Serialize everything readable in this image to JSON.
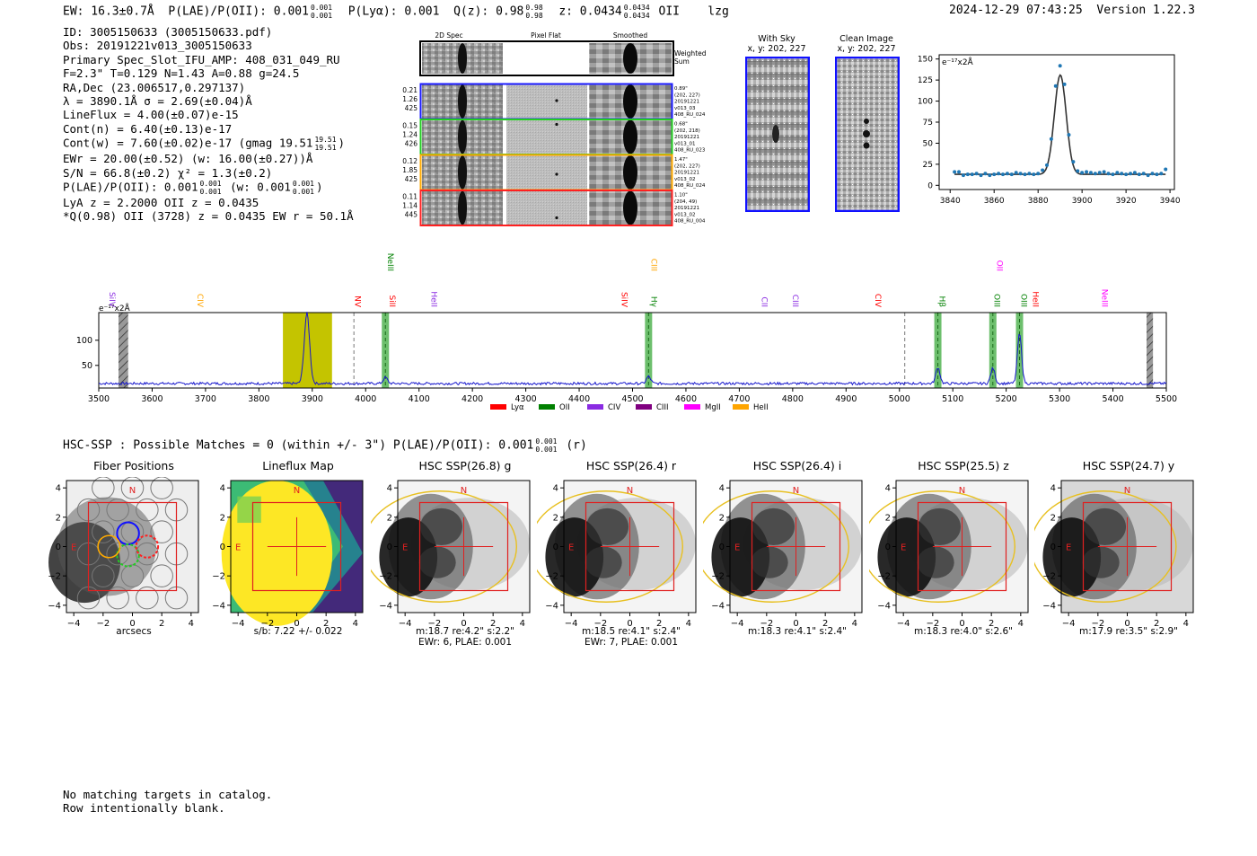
{
  "header": {
    "ew": "EW: 16.3±0.7Å",
    "plae_label": "P(LAE)/P(OII): 0.001",
    "plae_hi": "0.001",
    "plae_lo": "0.001",
    "plya": "P(Lyα): 0.001",
    "qz_label": "Q(z): 0.98",
    "qz_hi": "0.98",
    "qz_lo": "0.98",
    "z_label": "z: 0.0434",
    "z_hi": "0.0434",
    "z_lo": "0.0434",
    "z_line": "OII",
    "tag": "lzg",
    "timestamp": "2024-12-29 07:43:25",
    "version": "Version 1.22.3"
  },
  "info": {
    "id": "ID: 3005150633 (3005150633.pdf)",
    "obs": "Obs: 20191221v013_3005150633",
    "primary": "Primary Spec_Slot_IFU_AMP: 408_031_049_RU",
    "params": "F=2.3\"  T=0.129  N=1.43  A=0.88  g=24.5",
    "radec": "RA,Dec (23.006517,0.297137)",
    "lambda": "λ = 3890.1Å  σ = 2.69(±0.04)Å",
    "lineflux": "LineFlux = 4.00(±0.07)e-15",
    "contn": "Cont(n) = 6.40(±0.13)e-17",
    "contw": "Cont(w) = 7.60(±0.02)e-17 (gmag 19.51",
    "contw_hi": "19.51",
    "contw_lo": "19.51",
    "ewr": "EWr = 20.00(±0.52) (w: 16.00(±0.27))Å",
    "sn": "S/N = 66.8(±0.2)  χ² = 1.3(±0.2)",
    "plae": "P(LAE)/P(OII): 0.001",
    "plae_hi": "0.001",
    "plae_lo": "0.001",
    "plae_w": "(w: 0.001",
    "plae_w_hi": "0.001",
    "plae_w_lo": "0.001",
    "lya": "LyA z = 2.2000  OII z = 0.0435",
    "q": "*Q(0.98) OII (3728) z = 0.0435  EW r = 50.1Å"
  },
  "cutout_panel": {
    "col_2d": "2D Spec",
    "col_flat": "Pixel Flat",
    "col_smooth": "Smoothed",
    "weighted": [
      "Weighted",
      "Sum"
    ],
    "rows": [
      {
        "left": [
          "0.21",
          "1.26",
          "425"
        ],
        "right": [
          "0.89\"",
          "(202, 227)",
          "20191221",
          "v013_03",
          "408_RU_024"
        ],
        "color": "#1a1aff"
      },
      {
        "left": [
          "0.15",
          "1.24",
          "426"
        ],
        "right": [
          "0.68\"",
          "(202, 218)",
          "20191221",
          "v013_01",
          "408_RU_023"
        ],
        "color": "#22cc22"
      },
      {
        "left": [
          "0.12",
          "1.85",
          "425"
        ],
        "right": [
          "1.47\"",
          "(202, 227)",
          "20191221",
          "v013_02",
          "408_RU_024"
        ],
        "color": "#ffaa00"
      },
      {
        "left": [
          "0.11",
          "1.14",
          "445"
        ],
        "right": [
          "1.10\"",
          "(204, 49)",
          "20191221",
          "v013_02",
          "408_RU_004"
        ],
        "color": "#ff2020"
      }
    ]
  },
  "sky": {
    "with_sky": "With Sky",
    "with_sky_xy": "x, y: 202, 227",
    "clean": "Clean Image",
    "clean_xy": "x, y: 202, 227"
  },
  "chart_data": [
    {
      "type": "scatter",
      "title": "",
      "ylabel": "e⁻¹⁷x2Å",
      "xlim": [
        3835,
        3942
      ],
      "ylim": [
        -5,
        155
      ],
      "xticks": [
        3840,
        3860,
        3880,
        3900,
        3920,
        3940
      ],
      "yticks": [
        0,
        25,
        50,
        75,
        100,
        125,
        150
      ],
      "points_x": [
        3842,
        3844,
        3846,
        3848,
        3850,
        3852,
        3854,
        3856,
        3858,
        3860,
        3862,
        3864,
        3866,
        3868,
        3870,
        3872,
        3874,
        3876,
        3878,
        3880,
        3882,
        3884,
        3886,
        3888,
        3890,
        3892,
        3894,
        3896,
        3898,
        3900,
        3902,
        3904,
        3906,
        3908,
        3910,
        3912,
        3914,
        3916,
        3918,
        3920,
        3922,
        3924,
        3926,
        3928,
        3930,
        3932,
        3934,
        3936,
        3938
      ],
      "points_y": [
        16,
        16,
        12,
        13,
        13,
        14,
        12,
        14,
        12,
        13,
        14,
        13,
        14,
        13,
        15,
        14,
        13,
        14,
        13,
        14,
        18,
        24,
        55,
        118,
        142,
        120,
        60,
        28,
        17,
        15,
        16,
        15,
        14,
        15,
        16,
        14,
        13,
        15,
        14,
        13,
        14,
        15,
        13,
        14,
        12,
        14,
        13,
        14,
        19
      ],
      "fit_center": 3890.1,
      "fit_sigma": 2.69,
      "fit_amp": 118,
      "fit_base": 13
    },
    {
      "type": "line",
      "ylabel": "e⁻¹⁷x2Å",
      "xlim": [
        3500,
        5500
      ],
      "ylim": [
        5,
        155
      ],
      "xticks": [
        3500,
        3600,
        3700,
        3800,
        3900,
        4000,
        4100,
        4200,
        4300,
        4400,
        4500,
        4600,
        4700,
        4800,
        4900,
        5000,
        5100,
        5200,
        5300,
        5400,
        5500
      ],
      "yticks": [
        50,
        100
      ],
      "peaks": [
        {
          "x": 3890,
          "amp": 140,
          "w": 5
        },
        {
          "x": 4037,
          "amp": 12,
          "w": 4
        },
        {
          "x": 4530,
          "amp": 14,
          "w": 4
        },
        {
          "x": 5072,
          "amp": 32,
          "w": 4
        },
        {
          "x": 5175,
          "amp": 30,
          "w": 4
        },
        {
          "x": 5225,
          "amp": 98,
          "w": 4
        }
      ],
      "baseline": 14,
      "highlight_bands": [
        {
          "x0": 3845,
          "x1": 3937,
          "color": "#c4c400"
        }
      ],
      "line_bands": [
        4037,
        4530,
        5072,
        5175,
        5225
      ],
      "hatch_bands": [
        {
          "x0": 3537,
          "x1": 3555
        },
        {
          "x0": 5463,
          "x1": 5475
        }
      ],
      "dashed_lines": [
        3978,
        5010
      ],
      "line_labels": [
        {
          "x": 3515,
          "text": "SiIV",
          "color": "#8a2be2",
          "row": 0
        },
        {
          "x": 3680,
          "text": "CIV",
          "color": "#ffa500",
          "row": 0
        },
        {
          "x": 3975,
          "text": "NV",
          "color": "#ff0000",
          "row": 0
        },
        {
          "x": 4040,
          "text": "SiII",
          "color": "#ff0000",
          "row": 0
        },
        {
          "x": 4037,
          "text": "NeIII",
          "color": "#008000",
          "row": 1
        },
        {
          "x": 4118,
          "text": "HeII",
          "color": "#8a2be2",
          "row": 0
        },
        {
          "x": 4475,
          "text": "SiIV",
          "color": "#ff0000",
          "row": 0
        },
        {
          "x": 4530,
          "text": "Hγ",
          "color": "#008000",
          "row": 0
        },
        {
          "x": 4530,
          "text": "CIII",
          "color": "#ffa500",
          "row": 1
        },
        {
          "x": 4737,
          "text": "CII",
          "color": "#8a2be2",
          "row": 0
        },
        {
          "x": 4795,
          "text": "CIII",
          "color": "#8a2be2",
          "row": 0
        },
        {
          "x": 4950,
          "text": "CIV",
          "color": "#ff0000",
          "row": 0
        },
        {
          "x": 5070,
          "text": "Hβ",
          "color": "#008000",
          "row": 0
        },
        {
          "x": 5173,
          "text": "OIII",
          "color": "#008000",
          "row": 0
        },
        {
          "x": 5178,
          "text": "OII",
          "color": "#ff00ff",
          "row": 1
        },
        {
          "x": 5223,
          "text": "OIII",
          "color": "#008000",
          "row": 0
        },
        {
          "x": 5245,
          "text": "HeII",
          "color": "#ff0000",
          "row": 0
        },
        {
          "x": 5375,
          "text": "NeIII",
          "color": "#ff00ff",
          "row": 0
        }
      ],
      "legend": [
        {
          "label": "Lyα",
          "color": "#ff0000"
        },
        {
          "label": "OII",
          "color": "#008000"
        },
        {
          "label": "CIV",
          "color": "#8a2be2"
        },
        {
          "label": "CIII",
          "color": "#800080"
        },
        {
          "label": "MgII",
          "color": "#ff00ff"
        },
        {
          "label": "HeII",
          "color": "#ffa500"
        }
      ]
    }
  ],
  "hsc": {
    "summary": "HSC-SSP : Possible Matches = 0 (within +/- 3\")  P(LAE)/P(OII): 0.001",
    "summary_hi": "0.001",
    "summary_lo": "0.001",
    "summary_band": "(r)",
    "axis_ticks": [
      "4",
      "2",
      "0",
      "−2",
      "−4"
    ],
    "x_ticks": [
      "−4",
      "−2",
      "0",
      "2",
      "4"
    ],
    "n_label": "N",
    "e_label": "E",
    "panels": [
      {
        "title": "Fiber Positions",
        "cap1": "arcsecs",
        "cap2": ""
      },
      {
        "title": "Lineflux Map",
        "cap1": "s/b: 7.22 +/- 0.022",
        "cap2": ""
      },
      {
        "title": "HSC SSP(26.8) g",
        "cap1": "m:18.7  re:4.2\"  s:2.2\"",
        "cap2": "EWr: 6, PLAE: 0.001"
      },
      {
        "title": "HSC SSP(26.4) r",
        "cap1": "m:18.5  re:4.1\"  s:2.4\"",
        "cap2": "EWr: 7, PLAE: 0.001"
      },
      {
        "title": "HSC SSP(26.4) i",
        "cap1": "m:18.3  re:4.1\"  s:2.4\"",
        "cap2": ""
      },
      {
        "title": "HSC SSP(25.5) z",
        "cap1": "m:18.3  re:4.0\"  s:2.6\"",
        "cap2": ""
      },
      {
        "title": "HSC SSP(24.7) y",
        "cap1": "m:17.9  re:3.5\"  s:2.9\"",
        "cap2": ""
      }
    ]
  },
  "footer": {
    "line1": "No matching targets in catalog.",
    "line2": "Row intentionally blank."
  }
}
